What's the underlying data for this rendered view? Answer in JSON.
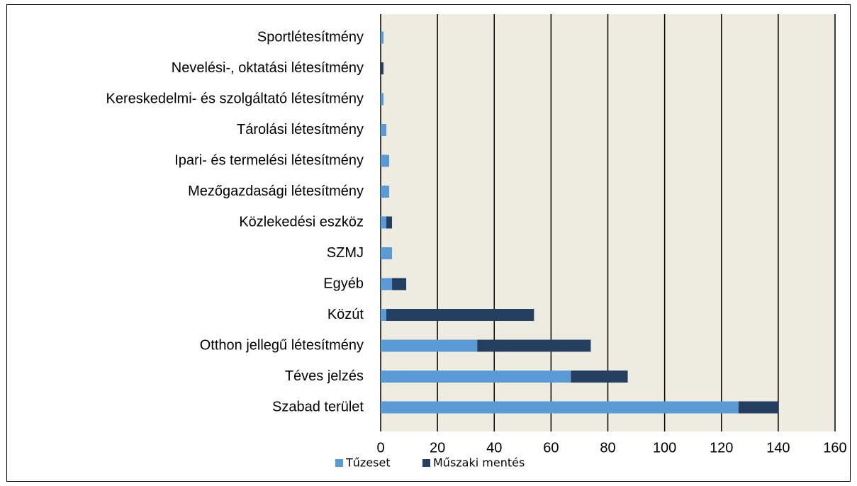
{
  "chart_data": {
    "type": "stacked_barh",
    "categories": [
      "Sportlétesítmény",
      "Nevelési-, oktatási létesítmény",
      "Kereskedelmi- és szolgáltató létesítmény",
      "Tárolási létesítmény",
      "Ipari- és termelési létesítmény",
      "Mezőgazdasági létesítmény",
      "Közlekedési eszköz",
      "SZMJ",
      "Egyéb",
      "Közút",
      "Otthon jellegű létesítmény",
      "Téves jelzés",
      "Szabad terület"
    ],
    "series": [
      {
        "name": "Tűzeset",
        "color": "#5b9bd5",
        "values": [
          1,
          0,
          1,
          2,
          3,
          3,
          2,
          4,
          4,
          2,
          34,
          67,
          126
        ]
      },
      {
        "name": "Műszaki mentés",
        "color": "#243f60",
        "values": [
          0,
          1,
          0,
          0,
          0,
          0,
          2,
          0,
          5,
          52,
          40,
          20,
          14
        ]
      }
    ],
    "xlim": [
      0,
      160
    ],
    "xticks": [
      0,
      20,
      40,
      60,
      80,
      100,
      120,
      140,
      160
    ],
    "grid": true
  }
}
